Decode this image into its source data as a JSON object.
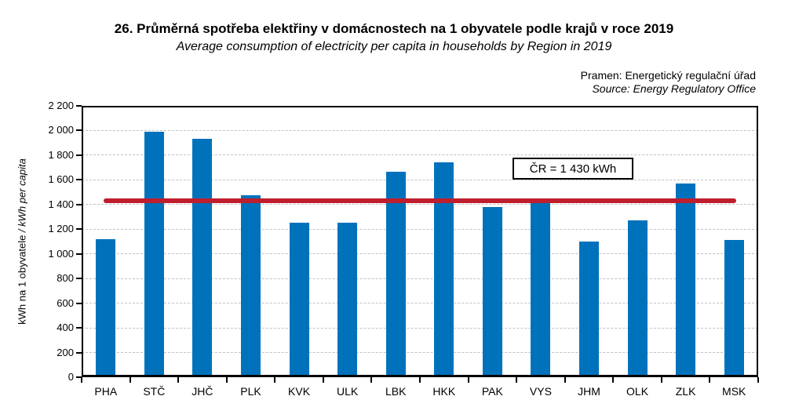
{
  "title": "26. Průměrná spotřeba elektřiny v domácnostech na 1 obyvatele podle krajů v roce 2019",
  "subtitle": "Average consumption of electricity per capita in households by Region in 2019",
  "source": {
    "pramen": "Pramen: Energetický regulační úřad",
    "source_en": "Source: Energy Regulatory Office"
  },
  "chart_data": {
    "type": "bar",
    "title": "26. Průměrná spotřeba elektřiny v domácnostech na 1 obyvatele podle krajů v roce 2019",
    "subtitle": "Average consumption of electricity per capita in households by Region in 2019",
    "categories": [
      "PHA",
      "STČ",
      "JHČ",
      "PLK",
      "KVK",
      "ULK",
      "LBK",
      "HKK",
      "PAK",
      "VYS",
      "JHM",
      "OLK",
      "ZLK",
      "MSK"
    ],
    "values": [
      1120,
      1990,
      1935,
      1475,
      1250,
      1255,
      1665,
      1740,
      1380,
      1420,
      1100,
      1270,
      1570,
      1110
    ],
    "average_line": {
      "label": "ČR = 1 430 kWh",
      "value": 1430,
      "color": "#be1e2d"
    },
    "bar_color": "#0072bc",
    "ylabel_cz": "kWh na 1 obyvatele ",
    "ylabel_en": "/ kWh per capita",
    "xlabel": "",
    "ylim": [
      0,
      2200
    ],
    "ytick_step": 200,
    "ytick_labels": [
      "0",
      "200",
      "400",
      "600",
      "800",
      "1 000",
      "1 200",
      "1 400",
      "1 600",
      "1 800",
      "2 000",
      "2 200"
    ],
    "grid": true,
    "legend": false
  }
}
